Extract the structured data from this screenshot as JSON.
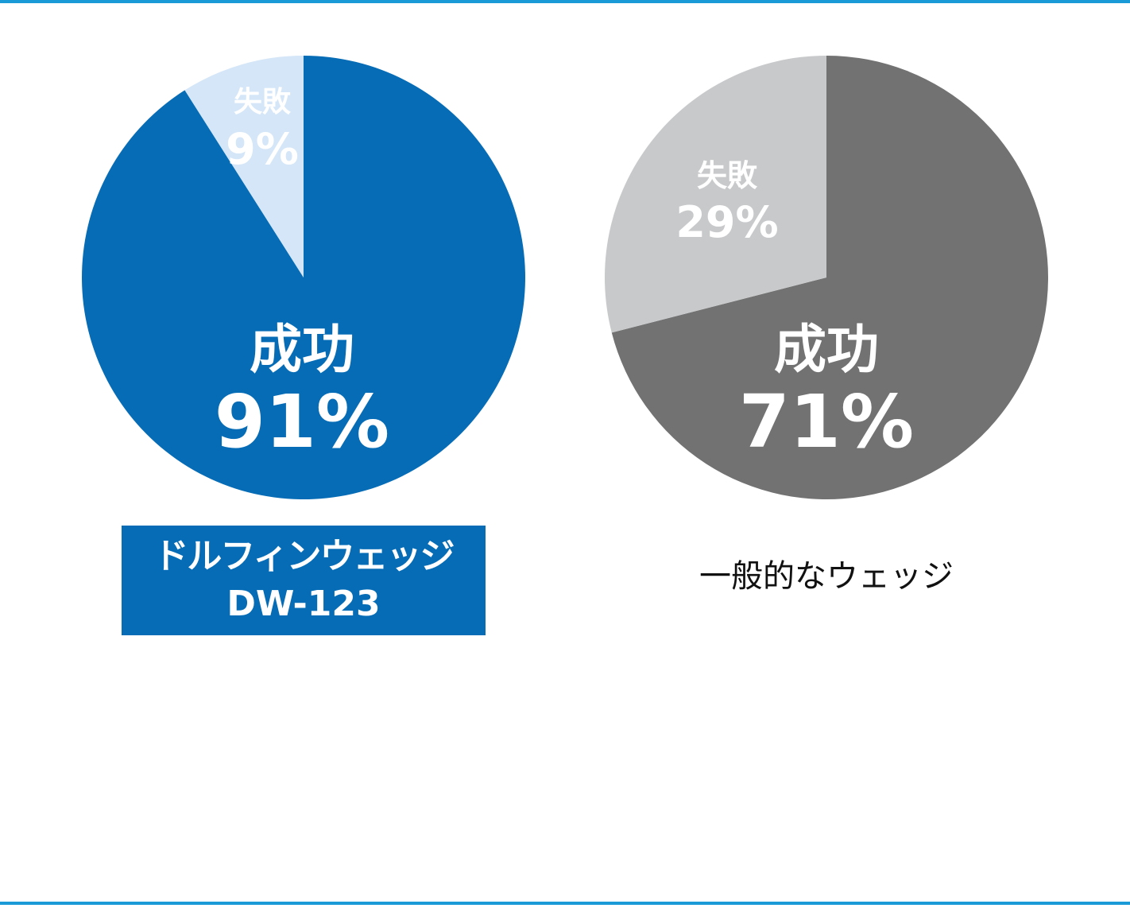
{
  "colors": {
    "rule": "#1a9ad6",
    "dw_success": "#066cb6",
    "dw_fail": "#d4e6f7",
    "gen_success": "#727272",
    "gen_fail": "#c8c9cb"
  },
  "chart_data": [
    {
      "type": "pie",
      "title": "ドルフィンウェッジ DW-123",
      "title_lines": [
        "ドルフィンウェッジ",
        "DW-123"
      ],
      "slices": [
        {
          "name": "失敗",
          "value": 9,
          "label": "9%"
        },
        {
          "name": "成功",
          "value": 91,
          "label": "91%"
        }
      ]
    },
    {
      "type": "pie",
      "title": "一般的なウェッジ",
      "slices": [
        {
          "name": "失敗",
          "value": 29,
          "label": "29%"
        },
        {
          "name": "成功",
          "value": 71,
          "label": "71%"
        }
      ]
    }
  ]
}
